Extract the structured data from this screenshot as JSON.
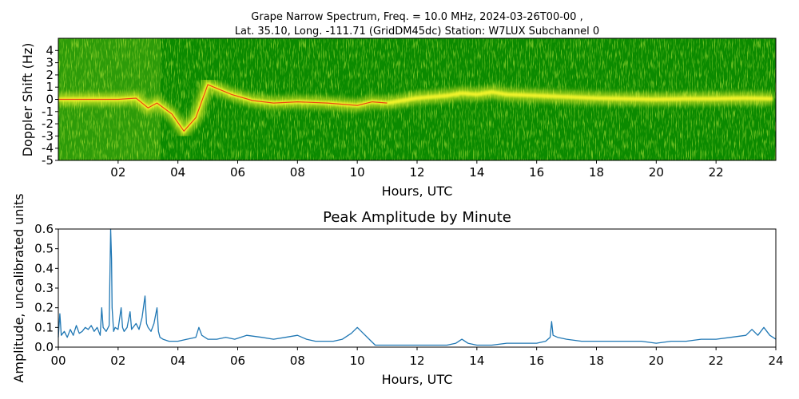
{
  "figure": {
    "title_line1": "Grape Narrow Spectrum, Freq. = 10.0 MHz, 2024-03-26T00-00 ,",
    "title_line2": "Lat.  35.10, Long. -111.71 (GridDM45dc) Station: W7LUX Subchannel 0"
  },
  "chart_data": [
    {
      "type": "heatmap",
      "title": "",
      "xlabel": "Hours, UTC",
      "ylabel": "Doppler Shift (Hz)",
      "xlim": [
        0,
        24
      ],
      "ylim": [
        -5,
        5
      ],
      "x_ticks": [
        "02",
        "04",
        "06",
        "08",
        "10",
        "12",
        "14",
        "16",
        "18",
        "20",
        "22"
      ],
      "y_ticks": [
        "4",
        "3",
        "2",
        "1",
        "0",
        "-1",
        "-2",
        "-3",
        "-4",
        "-5"
      ],
      "colors": {
        "background": "#0b8a00",
        "signal": "#f5f52a",
        "peak": "#e81d0c"
      },
      "ridge": {
        "hours": [
          0,
          1,
          2,
          2.6,
          3,
          3.3,
          3.8,
          4.2,
          4.6,
          5.0,
          5.3,
          5.8,
          6.5,
          7.2,
          8.0,
          9.0,
          10.0,
          10.5,
          11.0,
          12.0,
          13.0,
          13.5,
          14.0,
          14.5,
          15.0,
          16.0,
          17.0,
          18.0,
          19.0,
          20.0,
          21.0,
          22.0,
          23.0,
          23.9
        ],
        "doppler": [
          0,
          0,
          0,
          0.1,
          -0.7,
          -0.3,
          -1.2,
          -2.6,
          -1.5,
          1.2,
          0.9,
          0.4,
          -0.1,
          -0.3,
          -0.2,
          -0.3,
          -0.5,
          -0.2,
          -0.3,
          0.1,
          0.3,
          0.5,
          0.4,
          0.6,
          0.4,
          0.3,
          0.2,
          0.1,
          0.05,
          0.0,
          0.05,
          0.05,
          0.1,
          0.05
        ]
      }
    },
    {
      "type": "line",
      "title": "Peak Amplitude by Minute",
      "xlabel": "Hours, UTC",
      "ylabel": "Amplitude, uncalibrated units",
      "xlim": [
        0,
        24
      ],
      "ylim": [
        0,
        0.6
      ],
      "x_ticks": [
        "00",
        "02",
        "04",
        "06",
        "08",
        "10",
        "12",
        "14",
        "16",
        "18",
        "20",
        "22",
        "24"
      ],
      "y_ticks": [
        "0.0",
        "0.1",
        "0.2",
        "0.3",
        "0.4",
        "0.5",
        "0.6"
      ],
      "color": "#1f77b4",
      "series": [
        {
          "x": [
            0,
            0.05,
            0.1,
            0.2,
            0.3,
            0.4,
            0.5,
            0.6,
            0.7,
            0.8,
            0.9,
            1.0,
            1.1,
            1.2,
            1.3,
            1.4,
            1.45,
            1.5,
            1.6,
            1.7,
            1.75,
            1.78,
            1.8,
            1.85,
            1.9,
            2.0,
            2.1,
            2.15,
            2.2,
            2.3,
            2.4,
            2.45,
            2.5,
            2.6,
            2.7,
            2.8,
            2.9,
            2.95,
            3.0,
            3.1,
            3.2,
            3.3,
            3.35,
            3.4,
            3.5,
            3.7,
            4.0,
            4.3,
            4.6,
            4.7,
            4.8,
            5.0,
            5.3,
            5.6,
            5.9,
            6.3,
            6.8,
            7.2,
            7.6,
            8.0,
            8.3,
            8.6,
            8.9,
            9.2,
            9.5,
            9.8,
            10.0,
            10.2,
            10.4,
            10.6,
            11.0,
            11.5,
            12.0,
            12.5,
            13.0,
            13.3,
            13.5,
            13.7,
            14.0,
            14.5,
            15.0,
            15.5,
            16.0,
            16.3,
            16.45,
            16.5,
            16.55,
            16.7,
            17.0,
            17.5,
            18.0,
            18.5,
            19.0,
            19.5,
            20.0,
            20.5,
            21.0,
            21.5,
            22.0,
            22.5,
            23.0,
            23.2,
            23.4,
            23.6,
            23.8,
            24.0
          ],
          "y": [
            0.05,
            0.17,
            0.06,
            0.08,
            0.05,
            0.09,
            0.06,
            0.11,
            0.07,
            0.08,
            0.1,
            0.09,
            0.11,
            0.08,
            0.1,
            0.06,
            0.2,
            0.1,
            0.08,
            0.11,
            0.6,
            0.45,
            0.2,
            0.08,
            0.1,
            0.09,
            0.2,
            0.1,
            0.08,
            0.1,
            0.18,
            0.09,
            0.1,
            0.12,
            0.09,
            0.15,
            0.26,
            0.12,
            0.1,
            0.08,
            0.12,
            0.2,
            0.08,
            0.05,
            0.04,
            0.03,
            0.03,
            0.04,
            0.05,
            0.1,
            0.06,
            0.04,
            0.04,
            0.05,
            0.04,
            0.06,
            0.05,
            0.04,
            0.05,
            0.06,
            0.04,
            0.03,
            0.03,
            0.03,
            0.04,
            0.07,
            0.1,
            0.07,
            0.04,
            0.01,
            0.01,
            0.01,
            0.01,
            0.01,
            0.01,
            0.02,
            0.04,
            0.02,
            0.01,
            0.01,
            0.02,
            0.02,
            0.02,
            0.03,
            0.05,
            0.13,
            0.06,
            0.05,
            0.04,
            0.03,
            0.03,
            0.03,
            0.03,
            0.03,
            0.02,
            0.03,
            0.03,
            0.04,
            0.04,
            0.05,
            0.06,
            0.09,
            0.06,
            0.1,
            0.06,
            0.04
          ]
        }
      ]
    }
  ]
}
